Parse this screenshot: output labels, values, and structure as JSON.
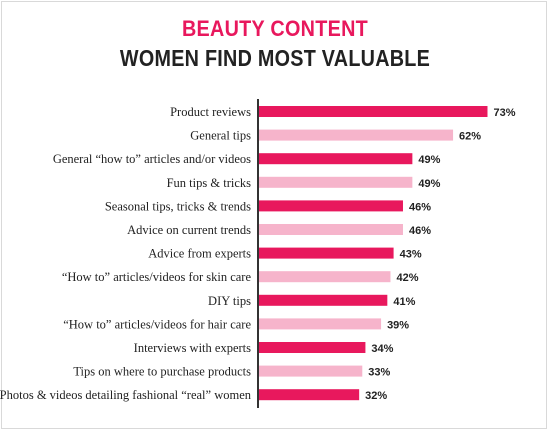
{
  "header": {
    "title": "BEAUTY CONTENT",
    "subtitle": "WOMEN FIND MOST VALUABLE"
  },
  "colors": {
    "dark_bar": "#e8185d",
    "light_bar": "#f6b4cb",
    "axis": "#333333",
    "title_accent": "#e8185d"
  },
  "chart_data": {
    "type": "bar",
    "orientation": "horizontal",
    "title": "BEAUTY CONTENT",
    "subtitle": "WOMEN FIND MOST VALUABLE",
    "categories": [
      "Product reviews",
      "General tips",
      "General “how to” articles and/or videos",
      "Fun tips & tricks",
      "Seasonal tips, tricks & trends",
      "Advice on current trends",
      "Advice from experts",
      "“How to” articles/videos for skin care",
      "DIY tips",
      "“How to” articles/videos for hair care",
      "Interviews with experts",
      "Tips on where to purchase products",
      "Photos & videos detailing fashional “real” women"
    ],
    "values": [
      73,
      62,
      49,
      49,
      46,
      46,
      43,
      42,
      41,
      39,
      34,
      33,
      32
    ],
    "value_labels": [
      "73%",
      "62%",
      "49%",
      "49%",
      "46%",
      "46%",
      "43%",
      "42%",
      "41%",
      "39%",
      "34%",
      "33%",
      "32%"
    ],
    "xlim": [
      0,
      100
    ],
    "grid": false,
    "bar_colors_alternate": [
      "dark",
      "light"
    ]
  }
}
